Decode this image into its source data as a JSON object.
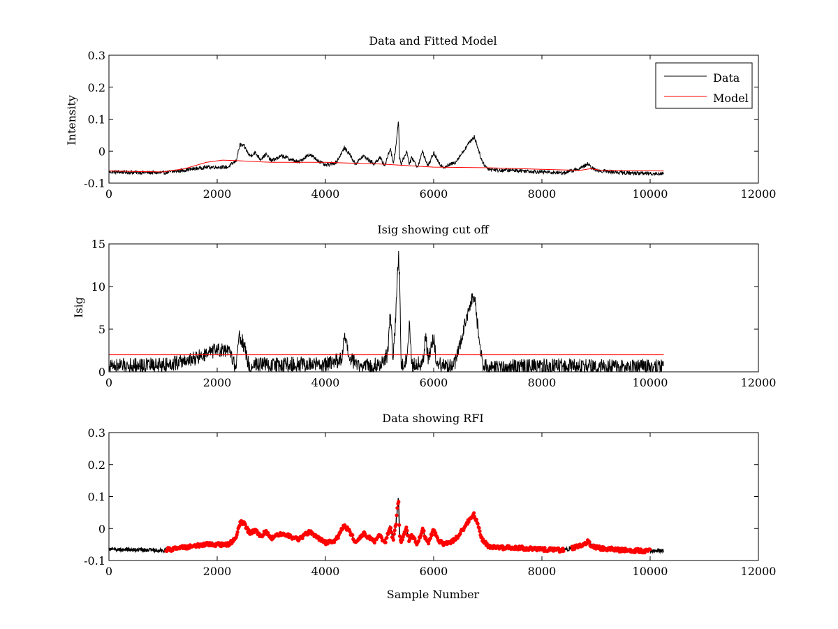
{
  "chart_data": [
    {
      "type": "line",
      "title": "Data and Fitted Model",
      "xlabel": "",
      "ylabel": "Intensity",
      "xlim": [
        0,
        12000
      ],
      "ylim": [
        -0.1,
        0.3
      ],
      "xticks": [
        0,
        2000,
        4000,
        6000,
        8000,
        10000,
        12000
      ],
      "xtick_labels": [
        "0",
        "2000",
        "4000",
        "6000",
        "8000",
        "10000",
        "12000"
      ],
      "yticks": [
        -0.1,
        0,
        0.1,
        0.2,
        0.3
      ],
      "ytick_labels": [
        "-0.1",
        "0",
        "0.1",
        "0.2",
        "0.3"
      ],
      "legend": {
        "position": "top-right",
        "entries": [
          "Data",
          "Model"
        ]
      },
      "series": [
        {
          "name": "Data",
          "color": "#000000",
          "noise": 0.006,
          "x": [
            0,
            1000,
            1800,
            2200,
            2350,
            2420,
            2500,
            2600,
            2700,
            2800,
            2900,
            3000,
            3200,
            3500,
            3700,
            4000,
            4200,
            4350,
            4450,
            4550,
            4700,
            4900,
            5000,
            5100,
            5200,
            5250,
            5300,
            5350,
            5370,
            5400,
            5500,
            5550,
            5600,
            5700,
            5800,
            5850,
            5900,
            6000,
            6100,
            6200,
            6400,
            6550,
            6650,
            6750,
            6800,
            6900,
            7000,
            7200,
            7500,
            8000,
            8400,
            8700,
            8850,
            8900,
            9000,
            9500,
            10000,
            10250
          ],
          "values": [
            -0.065,
            -0.068,
            -0.05,
            -0.05,
            -0.03,
            0.02,
            0.015,
            -0.015,
            -0.005,
            -0.025,
            -0.01,
            -0.03,
            -0.015,
            -0.035,
            -0.01,
            -0.045,
            -0.035,
            0.01,
            -0.01,
            -0.04,
            -0.015,
            -0.04,
            -0.02,
            -0.045,
            0.01,
            -0.04,
            0.01,
            0.1,
            -0.02,
            -0.04,
            0.0,
            -0.04,
            -0.02,
            -0.05,
            0.0,
            -0.03,
            -0.045,
            -0.005,
            -0.04,
            -0.05,
            -0.035,
            0.0,
            0.025,
            0.045,
            0.02,
            -0.035,
            -0.055,
            -0.06,
            -0.06,
            -0.065,
            -0.068,
            -0.055,
            -0.04,
            -0.05,
            -0.06,
            -0.068,
            -0.07,
            -0.07
          ]
        },
        {
          "name": "Model",
          "color": "#ff0000",
          "noise": 0,
          "x": [
            0,
            1000,
            1400,
            1800,
            2100,
            2400,
            3000,
            4000,
            5000,
            6000,
            7000,
            8000,
            8700,
            8900,
            9100,
            10250
          ],
          "values": [
            -0.062,
            -0.065,
            -0.055,
            -0.035,
            -0.028,
            -0.03,
            -0.035,
            -0.035,
            -0.04,
            -0.05,
            -0.052,
            -0.057,
            -0.06,
            -0.055,
            -0.06,
            -0.062
          ]
        }
      ]
    },
    {
      "type": "line",
      "title": "Isig showing cut off",
      "xlabel": "",
      "ylabel": "Isig",
      "xlim": [
        0,
        12000
      ],
      "ylim": [
        0,
        15
      ],
      "xticks": [
        0,
        2000,
        4000,
        6000,
        8000,
        10000,
        12000
      ],
      "xtick_labels": [
        "0",
        "2000",
        "4000",
        "6000",
        "8000",
        "10000",
        "12000"
      ],
      "yticks": [
        0,
        5,
        10,
        15
      ],
      "ytick_labels": [
        "0",
        "5",
        "10",
        "15"
      ],
      "series": [
        {
          "name": "Isig",
          "color": "#000000",
          "noise": 0.9,
          "x": [
            0,
            1000,
            1500,
            1800,
            2000,
            2250,
            2350,
            2400,
            2500,
            2600,
            2700,
            3000,
            3500,
            4000,
            4300,
            4350,
            4450,
            4600,
            5000,
            5150,
            5200,
            5250,
            5300,
            5350,
            5370,
            5400,
            5500,
            5550,
            5600,
            5800,
            5850,
            5900,
            6000,
            6050,
            6200,
            6400,
            6550,
            6700,
            6750,
            6800,
            6900,
            7000,
            8000,
            9000,
            10000,
            10250
          ],
          "values": [
            0.7,
            0.8,
            1.4,
            2.0,
            2.6,
            2.2,
            0.3,
            4.5,
            3.0,
            0.4,
            1.0,
            0.8,
            0.9,
            0.8,
            1.5,
            4.0,
            1.5,
            0.8,
            0.8,
            2.0,
            7.0,
            1.5,
            6.5,
            14.0,
            11.0,
            0.5,
            1.5,
            5.5,
            0.8,
            1.0,
            4.5,
            1.5,
            4.0,
            1.0,
            0.6,
            1.0,
            5.0,
            8.5,
            9.0,
            6.0,
            1.0,
            0.5,
            0.7,
            0.6,
            0.6,
            0.6
          ]
        },
        {
          "name": "Cut off",
          "color": "#ff0000",
          "noise": 0,
          "x": [
            0,
            10250
          ],
          "values": [
            2,
            2
          ]
        }
      ]
    },
    {
      "type": "scatter",
      "title": "Data showing RFI",
      "xlabel": "Sample Number",
      "ylabel": "",
      "xlim": [
        0,
        12000
      ],
      "ylim": [
        -0.1,
        0.3
      ],
      "xticks": [
        0,
        2000,
        4000,
        6000,
        8000,
        10000,
        12000
      ],
      "xtick_labels": [
        "0",
        "2000",
        "4000",
        "6000",
        "8000",
        "10000",
        "12000"
      ],
      "yticks": [
        -0.1,
        0,
        0.1,
        0.2,
        0.3
      ],
      "ytick_labels": [
        "-0.1",
        "0",
        "0.1",
        "0.2",
        "0.3"
      ],
      "base_series": "Data",
      "rfi_ranges": [
        [
          1050,
          8400
        ],
        [
          8550,
          10000
        ]
      ],
      "series": [
        {
          "name": "Data",
          "color": "#000000"
        },
        {
          "name": "RFI",
          "color": "#ff0000"
        }
      ]
    }
  ]
}
